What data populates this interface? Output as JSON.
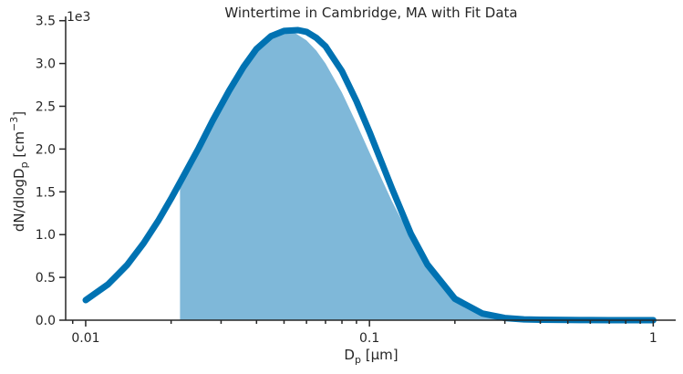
{
  "chart_data": {
    "type": "area",
    "title": "Wintertime in Cambridge, MA with Fit Data",
    "xlabel": {
      "main": "D",
      "sub": "p",
      "rest": " [μm]"
    },
    "ylabel": {
      "p1": "dN/dlogD",
      "sub": "p",
      "p2": " [cm",
      "sup": "−3",
      "p3": "]"
    },
    "y_offset_label": "1e3",
    "x_scale": "log",
    "xlim": [
      0.0085,
      1.2
    ],
    "ylim": [
      0,
      3550
    ],
    "x_ticks": [
      {
        "value": 0.01,
        "label": "0.01"
      },
      {
        "value": 0.1,
        "label": "0.1"
      },
      {
        "value": 1,
        "label": "1"
      }
    ],
    "y_ticks": [
      {
        "value": 0,
        "label": "0.0"
      },
      {
        "value": 500,
        "label": "0.5"
      },
      {
        "value": 1000,
        "label": "1.0"
      },
      {
        "value": 1500,
        "label": "1.5"
      },
      {
        "value": 2000,
        "label": "2.0"
      },
      {
        "value": 2500,
        "label": "2.5"
      },
      {
        "value": 3000,
        "label": "3.0"
      },
      {
        "value": 3500,
        "label": "3.5"
      }
    ],
    "series": [
      {
        "kind": "histogram",
        "color": "#7fb8d9",
        "x": [
          0.0215,
          0.025,
          0.03,
          0.035,
          0.04,
          0.045,
          0.05,
          0.055,
          0.06,
          0.065,
          0.07,
          0.08,
          0.09,
          0.1,
          0.12,
          0.14,
          0.16,
          0.2,
          0.25,
          0.3,
          0.35,
          0.4,
          0.45,
          0.5,
          0.55,
          0.6
        ],
        "y": [
          1620,
          1990,
          2500,
          2910,
          3190,
          3340,
          3380,
          3350,
          3270,
          3150,
          3000,
          2660,
          2300,
          1960,
          1390,
          960,
          660,
          290,
          110,
          42,
          17,
          8,
          4,
          2,
          1,
          0
        ]
      },
      {
        "kind": "fit",
        "color": "#0072b2",
        "x": [
          0.01,
          0.012,
          0.014,
          0.016,
          0.018,
          0.02,
          0.022,
          0.025,
          0.028,
          0.032,
          0.036,
          0.04,
          0.045,
          0.05,
          0.056,
          0.06,
          0.065,
          0.07,
          0.08,
          0.09,
          0.1,
          0.12,
          0.14,
          0.16,
          0.2,
          0.25,
          0.3,
          0.35,
          0.4,
          0.5,
          0.6,
          0.7,
          0.8,
          1.0
        ],
        "y": [
          235,
          420,
          645,
          900,
          1160,
          1420,
          1670,
          2010,
          2330,
          2680,
          2960,
          3170,
          3320,
          3380,
          3390,
          3370,
          3300,
          3200,
          2910,
          2560,
          2200,
          1540,
          1010,
          650,
          250,
          78,
          26,
          10,
          5,
          2,
          1,
          0.5,
          0.3,
          0.1
        ]
      }
    ]
  }
}
